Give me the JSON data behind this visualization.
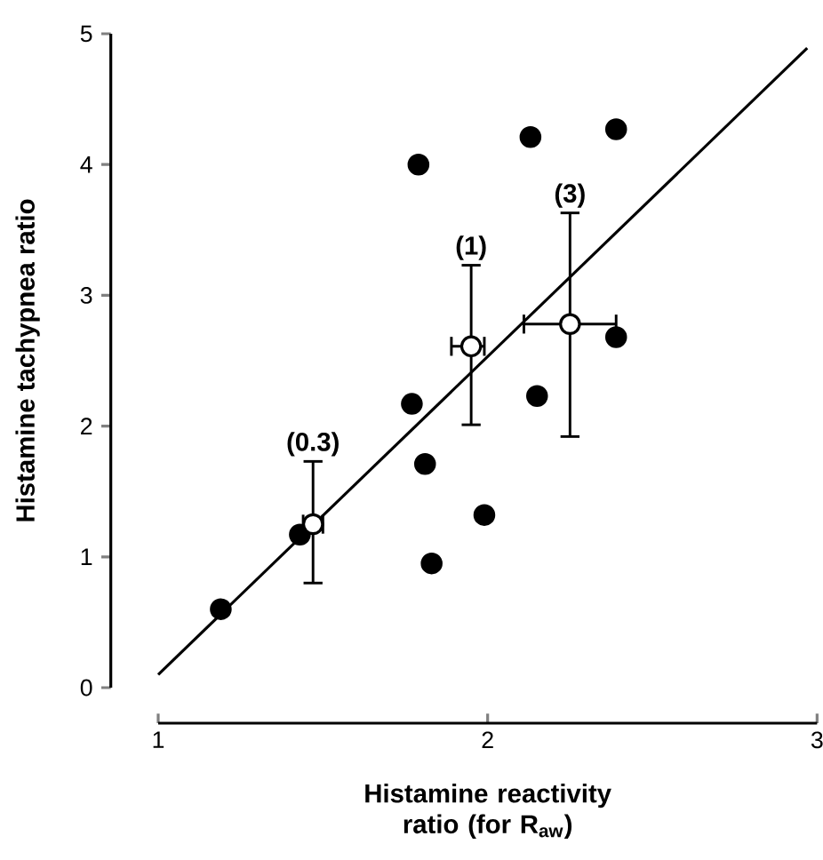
{
  "chart_data": {
    "type": "scatter",
    "xlabel": "Histamine reactivity ratio (for R$_{aw}$)",
    "ylabel": "Histamine tachypnea ratio",
    "xlim": [
      1,
      3
    ],
    "ylim": [
      0,
      5
    ],
    "xticks": [
      1,
      2,
      3
    ],
    "yticks": [
      0,
      1,
      2,
      3,
      4,
      5
    ],
    "series": [
      {
        "marker": "circle",
        "color": "#000000",
        "x": [
          1.79,
          2.13,
          2.39,
          2.39,
          2.15,
          1.77,
          1.81,
          1.99,
          1.83,
          1.19,
          1.43
        ],
        "values": [
          4.0,
          4.21,
          4.27,
          2.68,
          2.23,
          2.17,
          1.71,
          1.32,
          0.95,
          0.6,
          1.17
        ]
      },
      {
        "type": "line",
        "marker": "none",
        "color": "#000000",
        "x": [
          1.0,
          2.97
        ],
        "values": [
          0.1,
          4.89
        ]
      },
      {
        "marker": "circle",
        "color": "#ffffff",
        "x": [
          1.47,
          1.95,
          2.25
        ],
        "values": [
          1.25,
          2.61,
          2.78
        ],
        "errors": [
          [
            0.8,
            1.73
          ],
          [
            2.01,
            3.23
          ],
          [
            1.92,
            3.63
          ]
        ],
        "xerrors": [
          [
            1.44,
            1.5
          ],
          [
            1.89,
            1.99
          ],
          [
            2.11,
            2.39
          ]
        ]
      }
    ],
    "annotations": [
      {
        "text": "(0.3)",
        "x": 1.47,
        "y": 1.73
      },
      {
        "text": "(1)",
        "x": 1.95,
        "y": 3.23
      },
      {
        "text": "(3)",
        "x": 2.25,
        "y": 3.63
      }
    ]
  }
}
